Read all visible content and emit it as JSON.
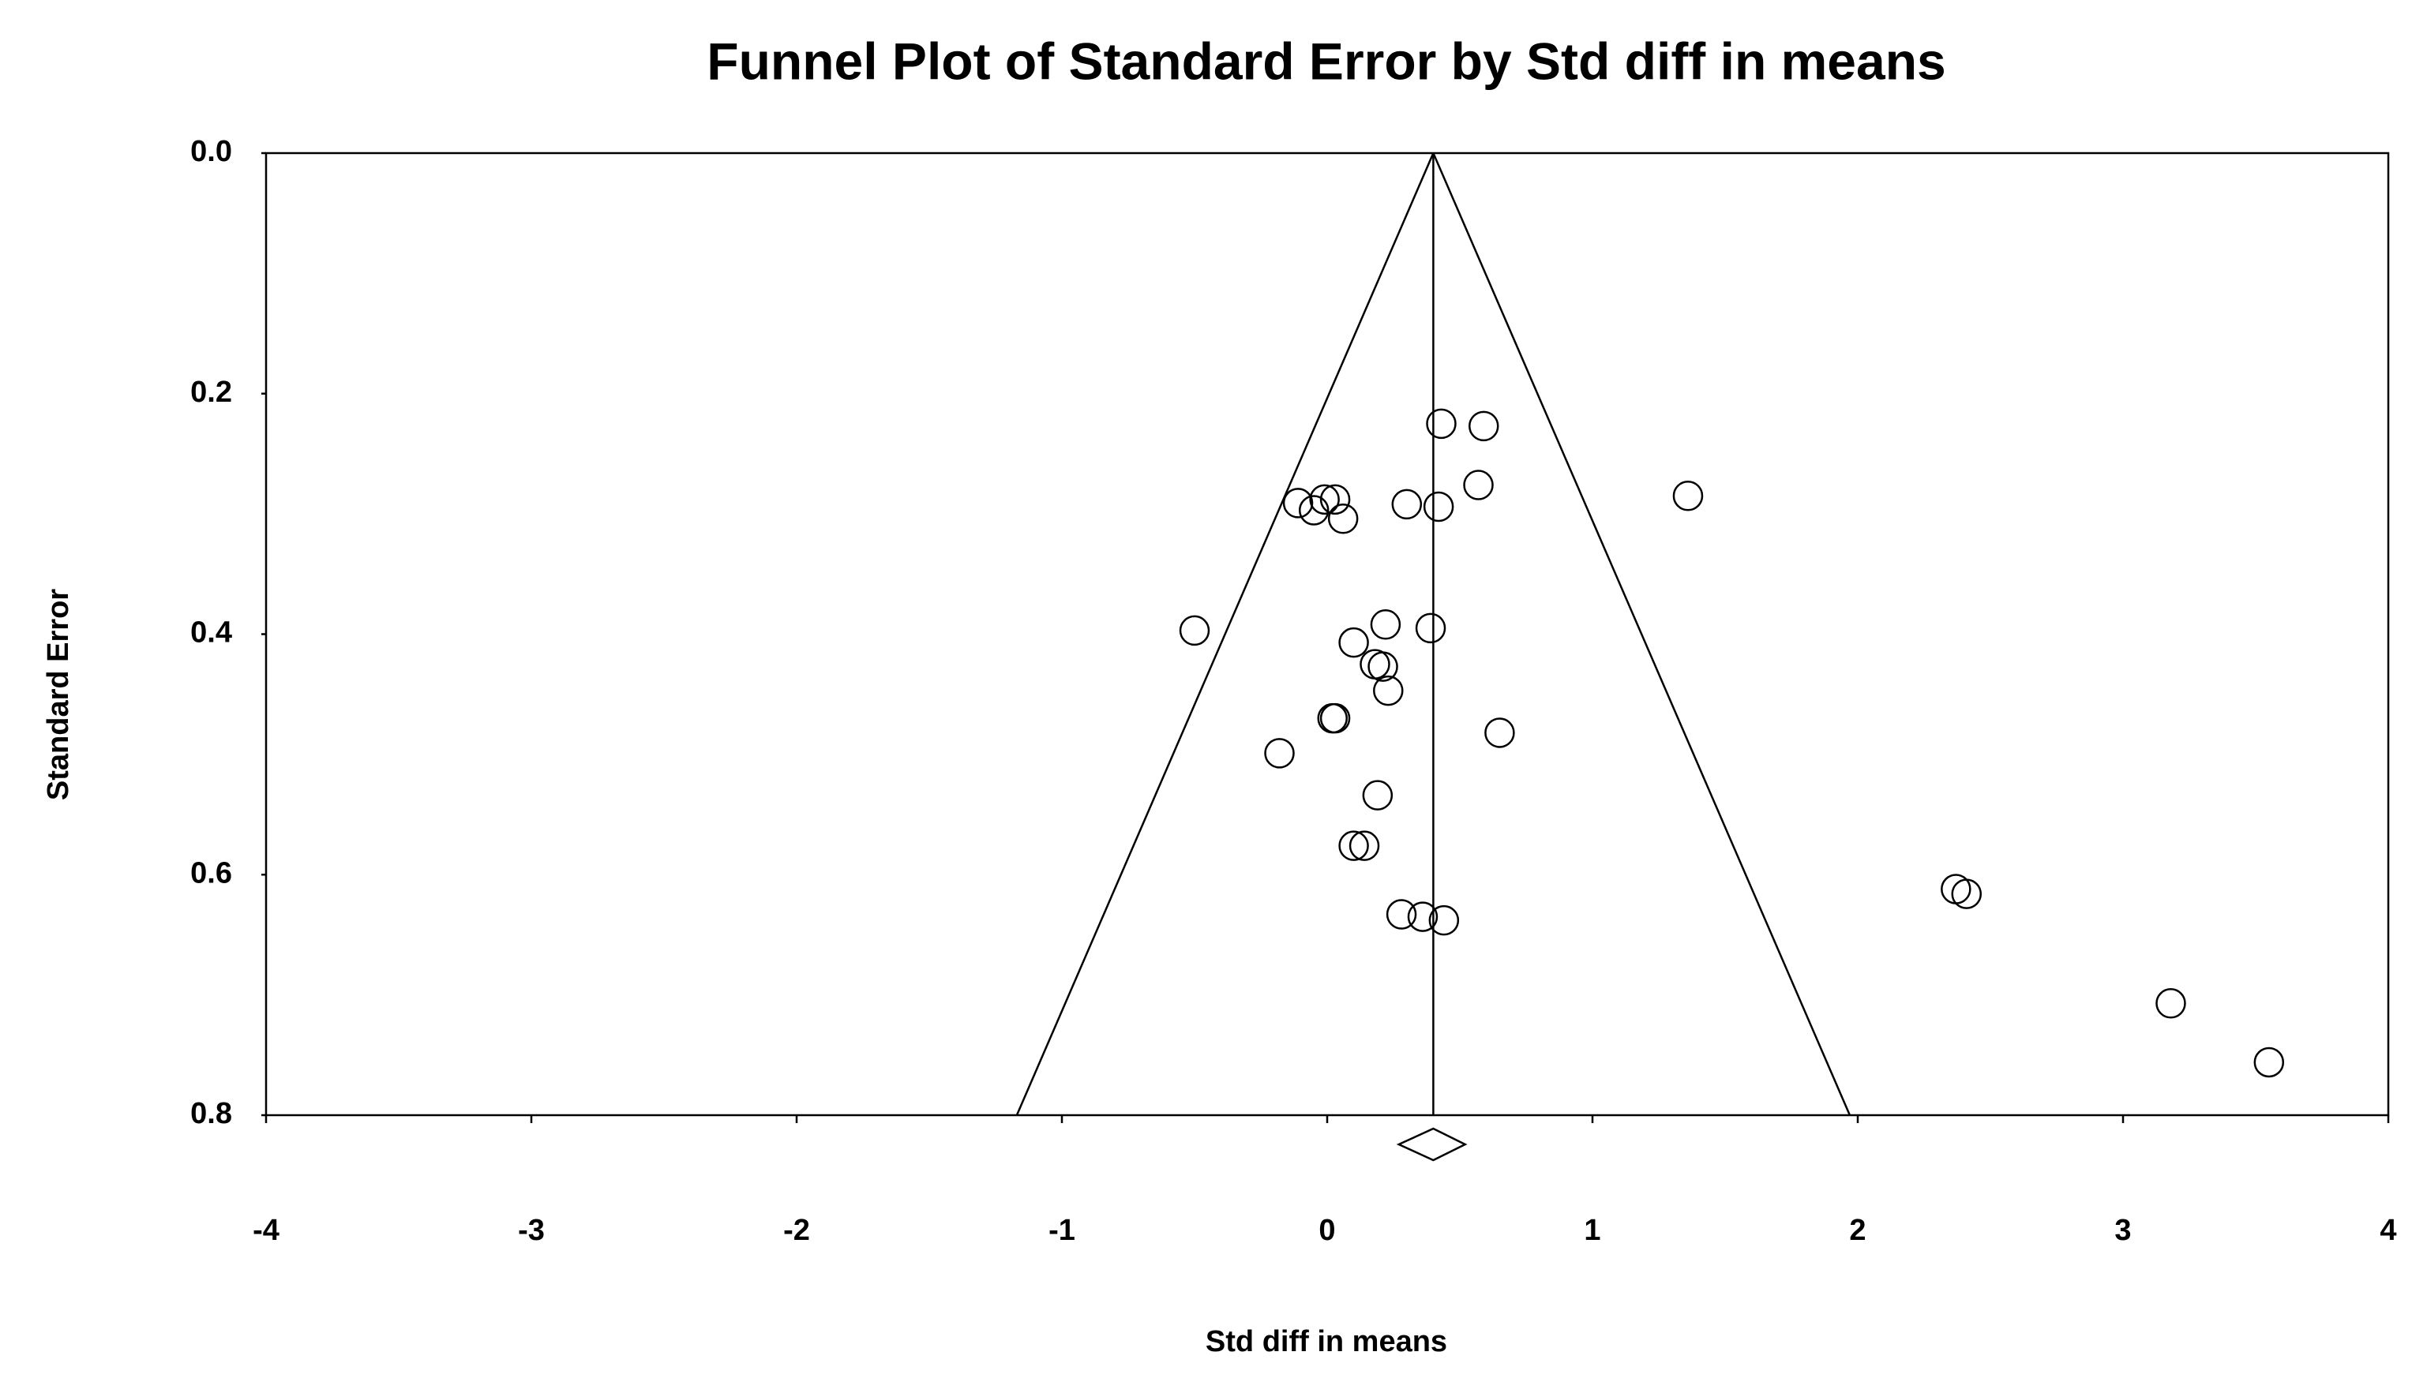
{
  "chart_data": {
    "type": "scatter",
    "title": "Funnel Plot of Standard Error by Std diff in means",
    "x_label": "Std diff in means",
    "y_label": "Standard Error",
    "x": [
      0.43,
      0.59,
      0.57,
      1.36,
      -0.11,
      -0.01,
      0.03,
      -0.05,
      0.06,
      0.3,
      0.42,
      -0.5,
      0.22,
      0.39,
      0.1,
      0.18,
      0.21,
      0.23,
      0.02,
      0.03,
      0.65,
      -0.18,
      0.19,
      0.1,
      0.14,
      0.28,
      0.36,
      0.44,
      2.37,
      2.41,
      3.18,
      3.55
    ],
    "values": [
      0.225,
      0.227,
      0.276,
      0.285,
      0.291,
      0.288,
      0.288,
      0.297,
      0.304,
      0.292,
      0.294,
      0.397,
      0.392,
      0.395,
      0.407,
      0.425,
      0.427,
      0.447,
      0.47,
      0.47,
      0.482,
      0.499,
      0.534,
      0.576,
      0.576,
      0.633,
      0.635,
      0.638,
      0.612,
      0.616,
      0.707,
      0.756
    ],
    "color": "#000000",
    "funnel": {
      "center": 0.4,
      "lower_at_max_se": -1.17,
      "upper_at_max_se": 1.97
    },
    "summary": {
      "estimate": 0.4,
      "ci": [
        0.27,
        0.52
      ]
    },
    "xlim": [
      -4,
      4
    ],
    "xticks": [
      -4,
      -3,
      -2,
      -1,
      0,
      1,
      2,
      3,
      4
    ],
    "ylim": [
      0,
      0.8
    ],
    "yticks": [
      {
        "value": 0,
        "label": "0.0"
      },
      0.2,
      0.4,
      0.6,
      0.8
    ],
    "y_inverted": true
  }
}
